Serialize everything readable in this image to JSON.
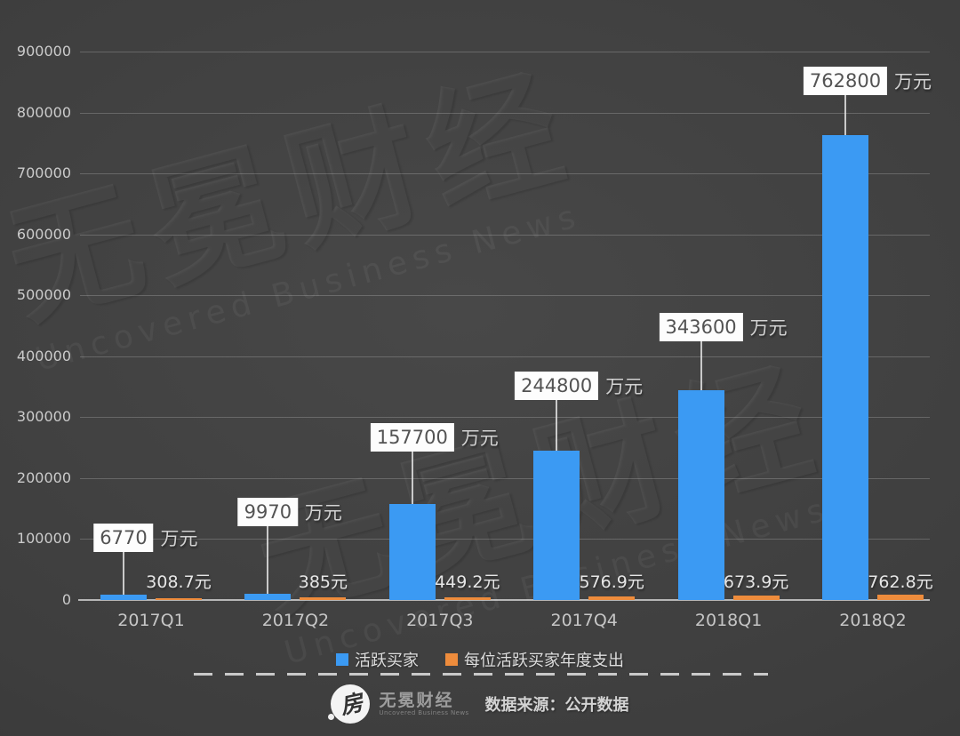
{
  "watermark": {
    "text": "无冕财经",
    "subtext": "Uncovered Business News"
  },
  "chart_data": {
    "type": "bar",
    "title": "",
    "categories": [
      "2017Q1",
      "2017Q2",
      "2017Q3",
      "2017Q4",
      "2018Q1",
      "2018Q2"
    ],
    "series": [
      {
        "name": "活跃买家",
        "color": "#3b9af3",
        "unit": "万元",
        "values": [
          6770,
          9970,
          157700,
          244800,
          343600,
          762800
        ],
        "labels": [
          "6770",
          "9970",
          "157700",
          "244800",
          "343600",
          "762800"
        ],
        "label_unit": "万元"
      },
      {
        "name": "每位活跃买家年度支出",
        "color": "#ee8c3c",
        "unit": "元",
        "values": [
          308.7,
          385,
          449.2,
          576.9,
          673.9,
          762.8
        ],
        "labels": [
          "308.7元",
          "385元",
          "449.2元",
          "576.9元",
          "673.9元",
          "762.8元"
        ]
      }
    ],
    "ylim": [
      0,
      900000
    ],
    "ytick_step": 100000,
    "yticks": [
      "0",
      "100000",
      "200000",
      "300000",
      "400000",
      "500000",
      "600000",
      "700000",
      "800000",
      "900000"
    ],
    "grid": true,
    "legend_position": "bottom"
  },
  "legend": {
    "items": [
      {
        "label": "活跃买家",
        "color": "#3b9af3"
      },
      {
        "label": "每位活跃买家年度支出",
        "color": "#ee8c3c"
      }
    ]
  },
  "footer": {
    "logo_glyph": "房",
    "brand": "无冕财经",
    "brand_sub": "Uncovered Business News",
    "source": "数据来源：公开数据"
  }
}
